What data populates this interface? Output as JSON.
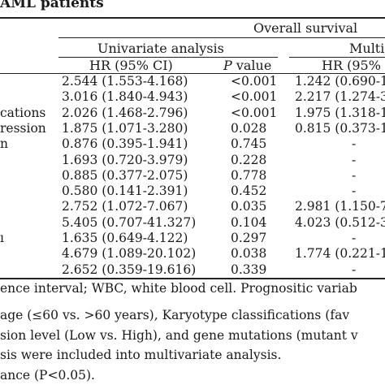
{
  "title": "AML patients",
  "header": {
    "overall": "Overall survival",
    "univariate": "Univariate analysis",
    "multivariate": "Multi",
    "hr_col": "HR (95% CI)",
    "p_col_italic": "P",
    "p_col_rest": " value",
    "hr_col_multi": "HR (95%"
  },
  "rows": [
    {
      "label": "",
      "uhr": "2.544 (1.553-4.168)",
      "up": "<0.001",
      "mhr": "1.242 (0.690-1"
    },
    {
      "label": "",
      "uhr": "3.016 (1.840-4.943)",
      "up": "<0.001",
      "mhr": "2.217 (1.274-3"
    },
    {
      "label": "cations",
      "uhr": "2.026 (1.468-2.796)",
      "up": "<0.001",
      "mhr": "1.975 (1.318-1"
    },
    {
      "label": "ression",
      "uhr": "1.875 (1.071-3.280)",
      "up": "0.028",
      "mhr": "0.815 (0.373-1"
    },
    {
      "label": "n",
      "uhr": "0.876 (0.395-1.941)",
      "up": "0.745",
      "mhr": "-"
    },
    {
      "label": "",
      "uhr": "1.693 (0.720-3.979)",
      "up": "0.228",
      "mhr": "-"
    },
    {
      "label": "",
      "uhr": "0.885 (0.377-2.075)",
      "up": "0.778",
      "mhr": "-"
    },
    {
      "label": "",
      "uhr": "0.580 (0.141-2.391)",
      "up": "0.452",
      "mhr": "-"
    },
    {
      "label": "",
      "uhr": "2.752 (1.072-7.067)",
      "up": "0.035",
      "mhr": "2.981 (1.150-7"
    },
    {
      "label": "",
      "uhr": "5.405 (0.707-41.327)",
      "up": "0.104",
      "mhr": "4.023 (0.512-3"
    },
    {
      "label": "ı",
      "uhr": "1.635 (0.649-4.122)",
      "up": "0.297",
      "mhr": "-"
    },
    {
      "label": "",
      "uhr": "4.679 (1.089-20.102)",
      "up": "0.038",
      "mhr": "1.774 (0.221-1"
    },
    {
      "label": "",
      "uhr": "2.652 (0.359-19.616)",
      "up": "0.339",
      "mhr": "-"
    }
  ],
  "footnotes": [
    "ence interval; WBC, white blood cell. Prognositic variab",
    "age (≤60 vs. >60 years), Karyotype classifications (fav",
    "sion level (Low vs. High), and gene mutations (mutant v",
    "sis were included into multivariate analysis.",
    "ance (P<0.05)."
  ]
}
